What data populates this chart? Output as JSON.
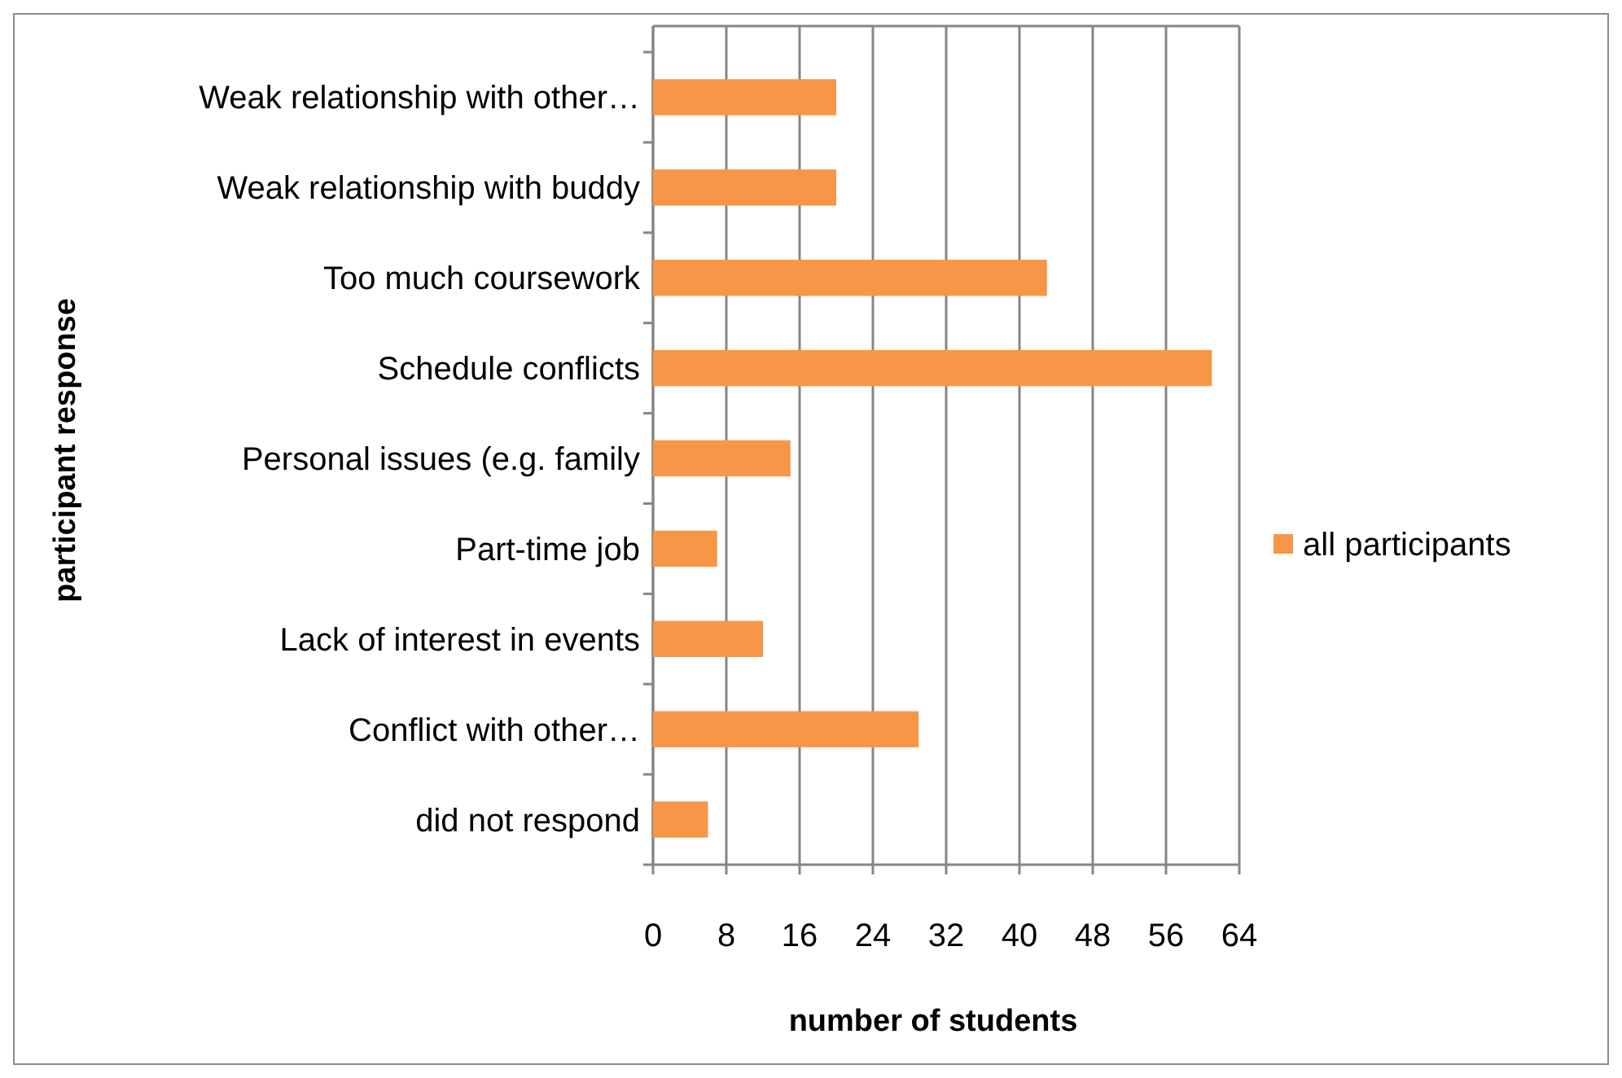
{
  "chart_data": {
    "type": "bar",
    "orientation": "horizontal",
    "xlabel": "number of students",
    "ylabel": "participant response",
    "categories": [
      "Weak relationship with other…",
      "Weak relationship with buddy",
      "Too much coursework",
      "Schedule conflicts",
      "Personal issues (e.g. family",
      "Part-time job",
      "Lack of interest in events",
      "Conflict with other…",
      "did not respond"
    ],
    "series": [
      {
        "name": "all participants",
        "color": "#f79646",
        "values": [
          20,
          20,
          43,
          61,
          15,
          7,
          12,
          29,
          6
        ]
      }
    ],
    "xlim": [
      0,
      64
    ],
    "xticks": [
      0,
      8,
      16,
      24,
      32,
      40,
      48,
      56,
      64
    ],
    "grid": "x",
    "legend": "right"
  }
}
